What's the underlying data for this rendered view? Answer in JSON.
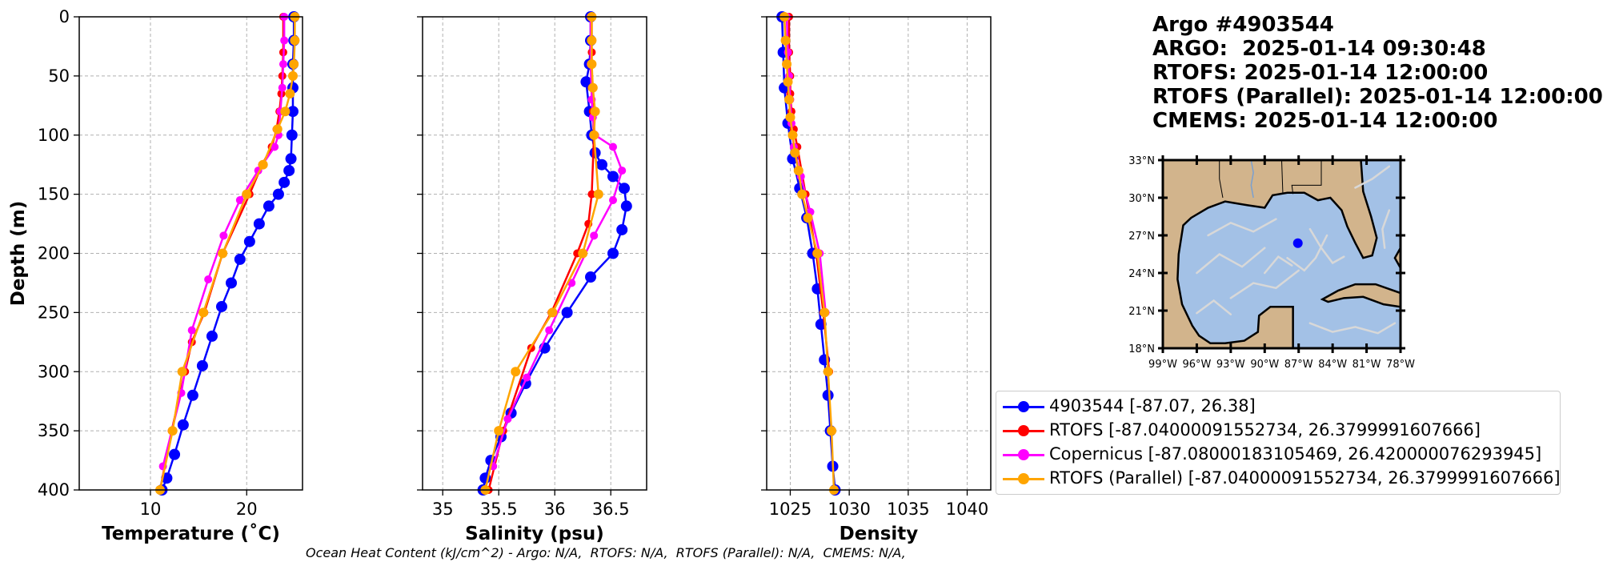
{
  "header": {
    "line1": "Argo #4903544",
    "line2": "ARGO:  2025-01-14 09:30:48",
    "line3": "RTOFS: 2025-01-14 12:00:00",
    "line4": "RTOFS (Parallel): 2025-01-14 12:00:00",
    "line5": "CMEMS: 2025-01-14 12:00:00"
  },
  "footer": "Ocean Heat Content (kJ/cm^2) - Argo: N/A,  RTOFS: N/A,  RTOFS (Parallel): N/A,  CMEMS: N/A,",
  "colors": {
    "argo": "#0000ff",
    "rtofs": "#ff0000",
    "copernicus": "#ff00ff",
    "parallel": "#ffa500",
    "land": "#d2b48c",
    "ocean": "#a3c1e6",
    "grid": "#b0b0b0"
  },
  "legend": [
    {
      "label": "4903544 [-87.07, 26.38]",
      "color": "#0000ff"
    },
    {
      "label": "RTOFS [-87.04000091552734, 26.3799991607666]",
      "color": "#ff0000"
    },
    {
      "label": "Copernicus [-87.08000183105469, 26.420000076293945]",
      "color": "#ff00ff"
    },
    {
      "label": "RTOFS (Parallel) [-87.04000091552734, 26.3799991607666]",
      "color": "#ffa500"
    }
  ],
  "chart_data": [
    {
      "type": "line",
      "xlabel": "Temperature (˚C)",
      "ylabel": "Depth (m)",
      "xlim": [
        2.6,
        25.8
      ],
      "ylim": [
        400,
        0
      ],
      "xticks": [
        10,
        20
      ],
      "yticks": [
        0,
        50,
        100,
        150,
        200,
        250,
        300,
        350,
        400
      ],
      "grid": true,
      "series": [
        {
          "name": "4903544",
          "color": "#0000ff",
          "marker_r": 7,
          "x": [
            24.9,
            24.9,
            24.8,
            24.8,
            24.8,
            24.7,
            24.6,
            24.4,
            23.9,
            23.3,
            22.3,
            21.3,
            20.3,
            19.3,
            18.4,
            17.4,
            16.4,
            15.4,
            14.4,
            13.4,
            12.5,
            11.7,
            11.2
          ],
          "y": [
            0,
            20,
            40,
            60,
            80,
            100,
            120,
            130,
            140,
            150,
            160,
            175,
            190,
            205,
            225,
            245,
            270,
            295,
            320,
            345,
            370,
            390,
            400
          ]
        },
        {
          "name": "RTOFS",
          "color": "#ff0000",
          "marker_r": 5,
          "x": [
            23.8,
            23.8,
            23.7,
            23.6,
            23.4,
            23.1,
            22.6,
            21.6,
            20.3,
            17.5,
            15.6,
            14.3,
            13.6,
            12.2,
            11.0
          ],
          "y": [
            0,
            30,
            50,
            65,
            80,
            95,
            110,
            125,
            150,
            200,
            250,
            275,
            300,
            350,
            400
          ]
        },
        {
          "name": "Copernicus",
          "color": "#ff00ff",
          "marker_r": 5,
          "x": [
            23.9,
            23.9,
            23.8,
            23.7,
            23.5,
            23.3,
            22.9,
            21.2,
            19.3,
            17.6,
            16.0,
            14.3,
            13.2,
            11.3
          ],
          "y": [
            0,
            20,
            40,
            60,
            80,
            100,
            110,
            130,
            155,
            185,
            222,
            265,
            318,
            380
          ]
        },
        {
          "name": "RTOFS (Parallel)",
          "color": "#ffa500",
          "marker_r": 6,
          "x": [
            25.0,
            25.0,
            24.9,
            24.8,
            24.5,
            24.0,
            23.2,
            21.7,
            20.0,
            17.5,
            15.5,
            13.3,
            12.3,
            11.0
          ],
          "y": [
            0,
            20,
            40,
            50,
            65,
            80,
            95,
            125,
            150,
            200,
            250,
            300,
            350,
            400
          ]
        }
      ]
    },
    {
      "type": "line",
      "xlabel": "Salinity (psu)",
      "ylabel": "",
      "xlim": [
        34.82,
        36.82
      ],
      "ylim": [
        400,
        0
      ],
      "xticks": [
        35.0,
        35.5,
        36.0,
        36.5
      ],
      "yticks": [
        0,
        50,
        100,
        150,
        200,
        250,
        300,
        350,
        400
      ],
      "grid": true,
      "series": [
        {
          "name": "4903544",
          "color": "#0000ff",
          "marker_r": 7,
          "x": [
            36.32,
            36.32,
            36.31,
            36.28,
            36.31,
            36.33,
            36.36,
            36.42,
            36.52,
            36.62,
            36.64,
            36.6,
            36.52,
            36.32,
            36.11,
            35.91,
            35.74,
            35.61,
            35.52,
            35.43,
            35.38,
            35.36
          ],
          "y": [
            0,
            20,
            40,
            55,
            80,
            100,
            115,
            125,
            135,
            145,
            160,
            180,
            200,
            220,
            250,
            280,
            310,
            335,
            355,
            375,
            390,
            400
          ]
        },
        {
          "name": "RTOFS",
          "color": "#ff0000",
          "marker_r": 5,
          "x": [
            36.33,
            36.33,
            36.33,
            36.34,
            36.35,
            36.33,
            36.3,
            36.2,
            35.97,
            35.79,
            35.54,
            35.41
          ],
          "y": [
            0,
            30,
            60,
            80,
            100,
            150,
            175,
            200,
            250,
            280,
            350,
            400
          ]
        },
        {
          "name": "Copernicus",
          "color": "#ff00ff",
          "marker_r": 5,
          "x": [
            36.32,
            36.32,
            36.33,
            36.34,
            36.36,
            36.52,
            36.6,
            36.52,
            36.35,
            36.15,
            35.95,
            35.75,
            35.58,
            35.45
          ],
          "y": [
            0,
            40,
            70,
            85,
            100,
            110,
            130,
            155,
            185,
            225,
            265,
            305,
            340,
            380
          ]
        },
        {
          "name": "RTOFS (Parallel)",
          "color": "#ffa500",
          "marker_r": 6,
          "x": [
            36.33,
            36.33,
            36.33,
            36.34,
            36.36,
            36.35,
            36.39,
            36.25,
            35.98,
            35.65,
            35.5,
            35.38
          ],
          "y": [
            0,
            20,
            40,
            60,
            80,
            100,
            150,
            200,
            250,
            300,
            350,
            400
          ]
        }
      ]
    },
    {
      "type": "line",
      "xlabel": "Density",
      "ylabel": "",
      "xlim": [
        1023,
        1042
      ],
      "ylim": [
        400,
        0
      ],
      "xticks": [
        1025,
        1030,
        1035,
        1040
      ],
      "yticks": [
        0,
        50,
        100,
        150,
        200,
        250,
        300,
        350,
        400
      ],
      "grid": true,
      "series": [
        {
          "name": "4903544",
          "color": "#0000ff",
          "marker_r": 7,
          "x": [
            1024.3,
            1024.4,
            1024.5,
            1024.8,
            1025.2,
            1025.8,
            1026.4,
            1026.9,
            1027.3,
            1027.6,
            1027.9,
            1028.2,
            1028.4,
            1028.6,
            1028.8
          ],
          "y": [
            0,
            30,
            60,
            90,
            120,
            145,
            170,
            200,
            230,
            260,
            290,
            320,
            350,
            380,
            400
          ]
        },
        {
          "name": "RTOFS",
          "color": "#ff0000",
          "marker_r": 5,
          "x": [
            1024.9,
            1024.9,
            1025.0,
            1025.0,
            1025.1,
            1025.3,
            1025.6,
            1026.3,
            1027.2,
            1027.8,
            1028.3
          ],
          "y": [
            0,
            30,
            50,
            65,
            80,
            95,
            110,
            150,
            200,
            250,
            300
          ]
        },
        {
          "name": "Copernicus",
          "color": "#ff00ff",
          "marker_r": 5,
          "x": [
            1024.7,
            1024.8,
            1024.9,
            1025.0,
            1025.1,
            1025.3,
            1025.9,
            1026.7,
            1027.5,
            1028.0
          ],
          "y": [
            0,
            30,
            50,
            70,
            90,
            110,
            135,
            165,
            200,
            250
          ]
        },
        {
          "name": "RTOFS (Parallel)",
          "color": "#ffa500",
          "marker_r": 6,
          "x": [
            1024.5,
            1024.6,
            1024.7,
            1024.8,
            1024.9,
            1025.0,
            1025.2,
            1025.4,
            1025.7,
            1026.0,
            1026.5,
            1027.3,
            1027.9,
            1028.2,
            1028.5,
            1028.7
          ],
          "y": [
            0,
            20,
            40,
            55,
            70,
            85,
            100,
            115,
            130,
            150,
            170,
            200,
            250,
            300,
            350,
            400
          ]
        }
      ]
    }
  ],
  "map": {
    "lat_labels": [
      "33°N",
      "30°N",
      "27°N",
      "24°N",
      "21°N",
      "18°N"
    ],
    "lon_labels": [
      "99°W",
      "96°W",
      "93°W",
      "90°W",
      "87°W",
      "84°W",
      "81°W",
      "78°W"
    ],
    "marker": {
      "lon": -87.07,
      "lat": 26.38
    },
    "lon_range": [
      -99,
      -78
    ],
    "lat_range": [
      18,
      33
    ]
  }
}
